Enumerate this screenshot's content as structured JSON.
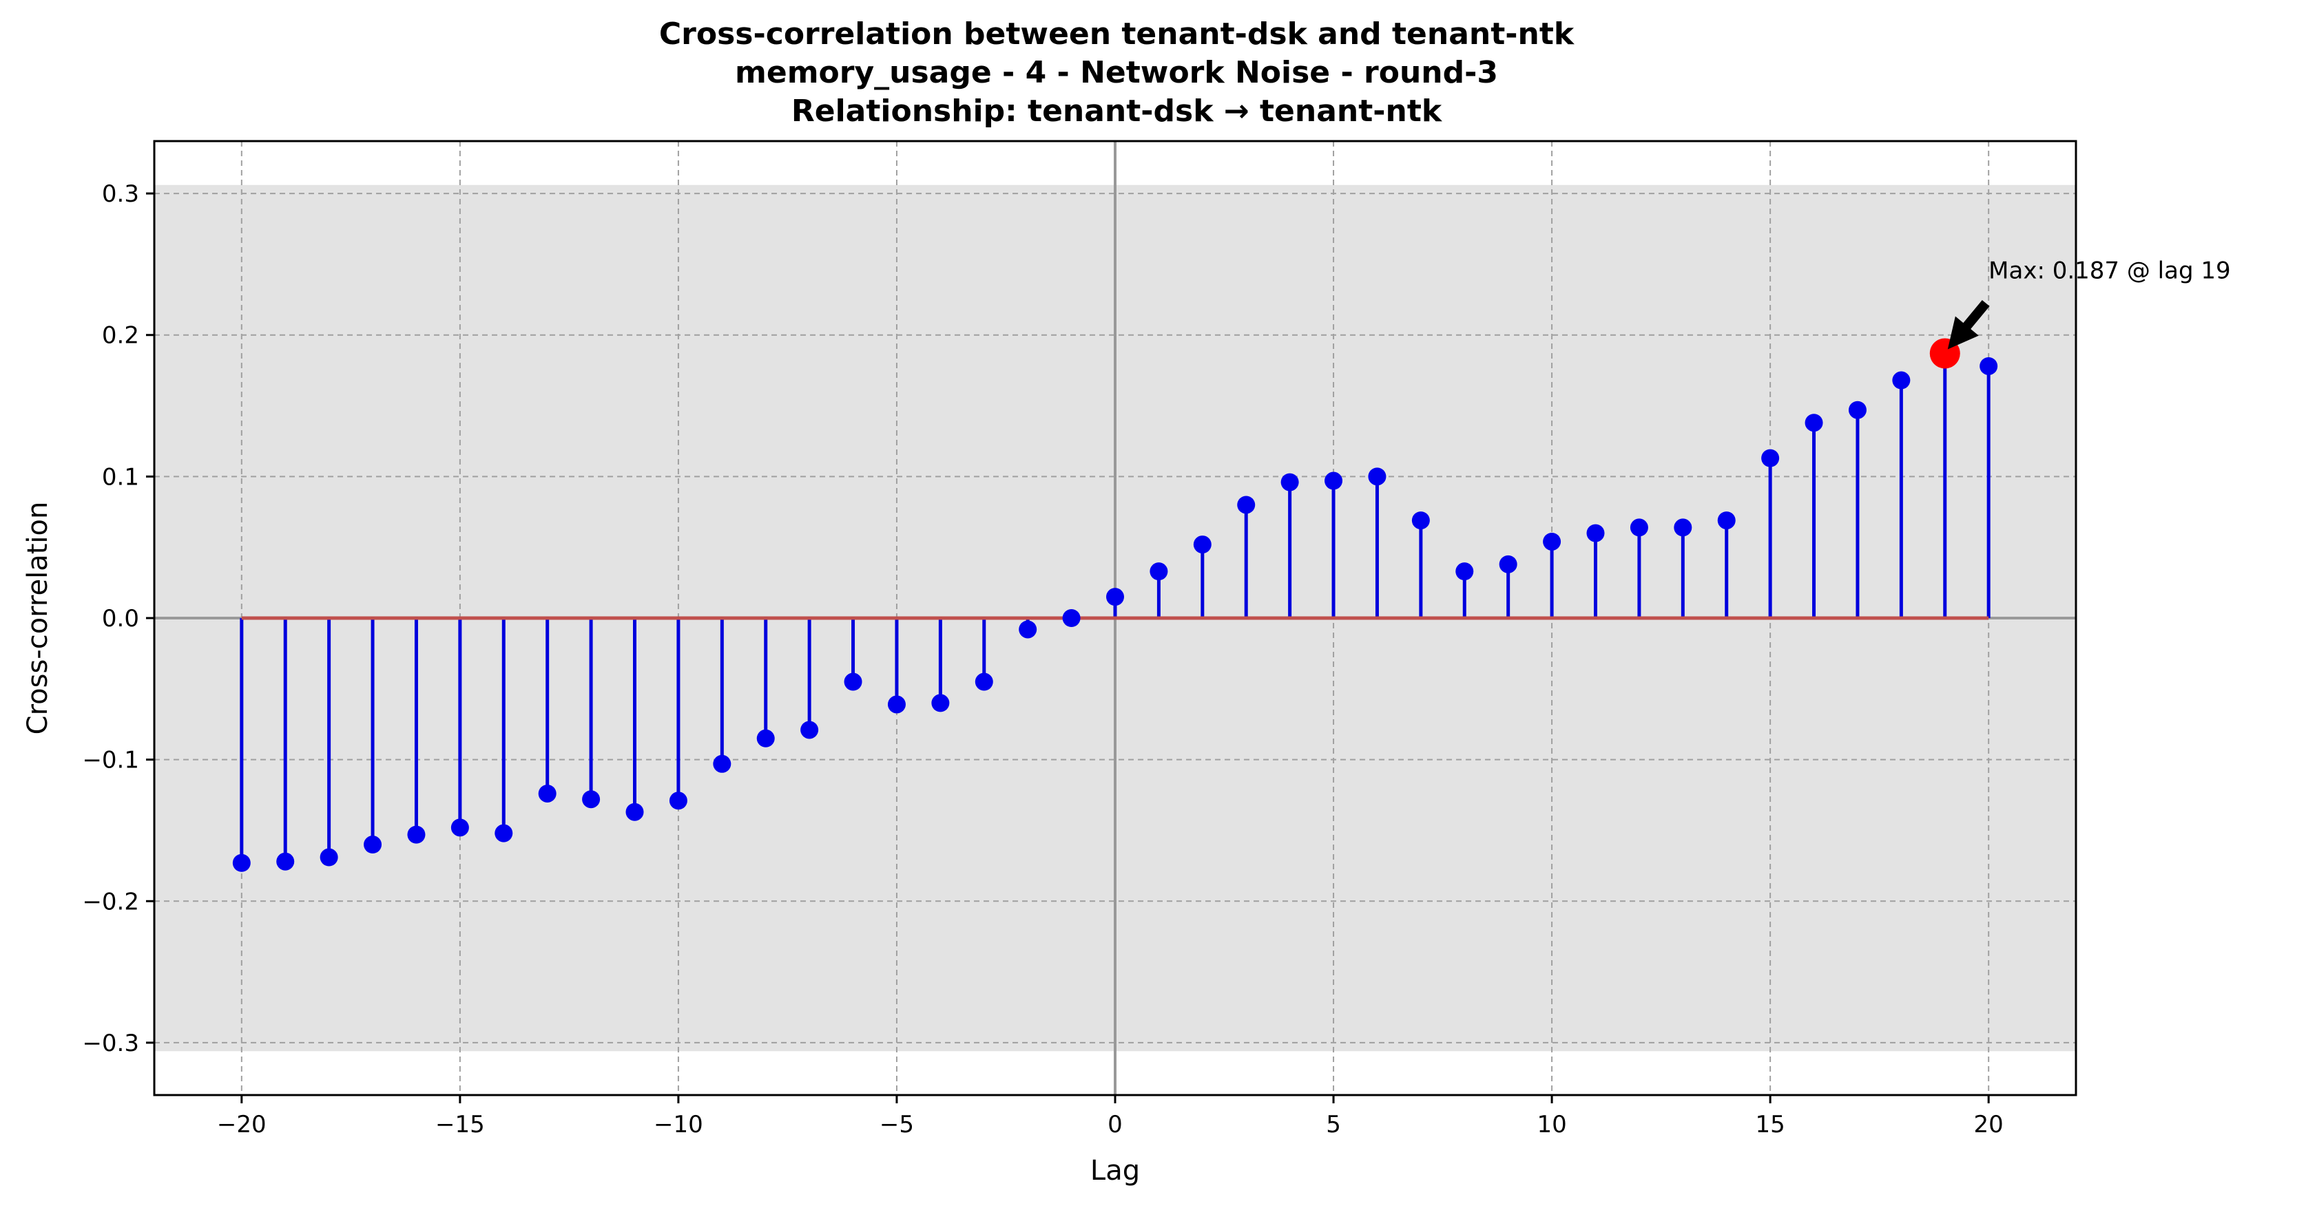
{
  "chart_data": {
    "type": "stem",
    "title_lines": [
      "Cross-correlation between tenant-dsk and tenant-ntk",
      "memory_usage - 4 - Network Noise - round-3",
      "Relationship: tenant-dsk → tenant-ntk"
    ],
    "xlabel": "Lag",
    "ylabel": "Cross-correlation",
    "xlim": [
      -22,
      22
    ],
    "ylim": [
      -0.337,
      0.337
    ],
    "xticks": [
      -20,
      -15,
      -10,
      -5,
      0,
      5,
      10,
      15,
      20
    ],
    "xtick_labels": [
      "−20",
      "−15",
      "−10",
      "−5",
      "0",
      "5",
      "10",
      "15",
      "20"
    ],
    "yticks": [
      -0.3,
      -0.2,
      -0.1,
      0.0,
      0.1,
      0.2,
      0.3
    ],
    "ytick_labels": [
      "−0.3",
      "−0.2",
      "−0.1",
      "0.0",
      "0.1",
      "0.2",
      "0.3"
    ],
    "grid": true,
    "confidence_band": [
      -0.306,
      0.306
    ],
    "x": [
      -20,
      -19,
      -18,
      -17,
      -16,
      -15,
      -14,
      -13,
      -12,
      -11,
      -10,
      -9,
      -8,
      -7,
      -6,
      -5,
      -4,
      -3,
      -2,
      -1,
      0,
      1,
      2,
      3,
      4,
      5,
      6,
      7,
      8,
      9,
      10,
      11,
      12,
      13,
      14,
      15,
      16,
      17,
      18,
      19,
      20
    ],
    "values": [
      -0.173,
      -0.172,
      -0.169,
      -0.16,
      -0.153,
      -0.148,
      -0.152,
      -0.124,
      -0.128,
      -0.137,
      -0.129,
      -0.103,
      -0.085,
      -0.079,
      -0.045,
      -0.061,
      -0.06,
      -0.045,
      -0.008,
      0.0,
      0.015,
      0.033,
      0.052,
      0.08,
      0.096,
      0.097,
      0.1,
      0.069,
      0.033,
      0.038,
      0.054,
      0.06,
      0.064,
      0.064,
      0.069,
      0.113,
      0.138,
      0.147,
      0.168,
      0.187,
      0.178
    ],
    "max_point": {
      "lag": 19,
      "value": 0.187
    },
    "annotation": "Max: 0.187 @ lag 19",
    "colors": {
      "stem": "#0000dd",
      "marker": "#0000ee",
      "max_marker": "#ff0000",
      "baseline": "#c0504d",
      "band": "#e3e3e3",
      "grid": "#a0a0a0",
      "zero_lines": "#999999"
    }
  }
}
